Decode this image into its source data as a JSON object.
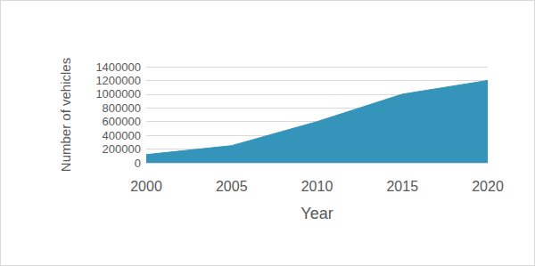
{
  "chart_data": {
    "type": "area",
    "x_label": "Year",
    "y_label": "Number of vehicles",
    "categories": [
      "2000",
      "2005",
      "2010",
      "2015",
      "2020"
    ],
    "values": [
      120000,
      250000,
      600000,
      1000000,
      1200000
    ],
    "color": "#3494ba",
    "ylim": [
      0,
      1400000
    ],
    "yticks": [
      0,
      200000,
      400000,
      600000,
      800000,
      1000000,
      1200000,
      1400000
    ],
    "grid": true
  }
}
